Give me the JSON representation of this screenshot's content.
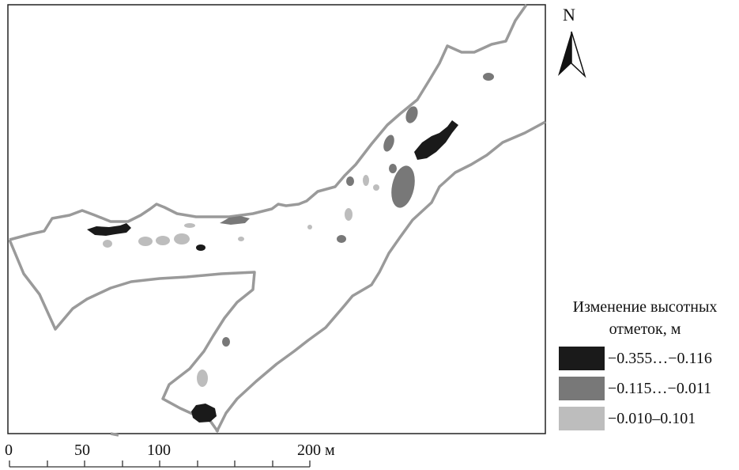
{
  "north": {
    "letter": "N"
  },
  "legend": {
    "title_line1": "Изменение высотных",
    "title_line2": "отметок, м",
    "classes": [
      {
        "label": "−0.355…−0.116",
        "color": "#1a1a1a"
      },
      {
        "label": "−0.115…−0.011",
        "color": "#787878"
      },
      {
        "label": "−0.010–0.101",
        "color": "#bdbdbd"
      }
    ]
  },
  "scale_bar": {
    "labels": [
      "0",
      "50",
      "100",
      "200 м"
    ]
  },
  "colors": {
    "outline": "#9a9a9a",
    "frame": "#222222"
  }
}
